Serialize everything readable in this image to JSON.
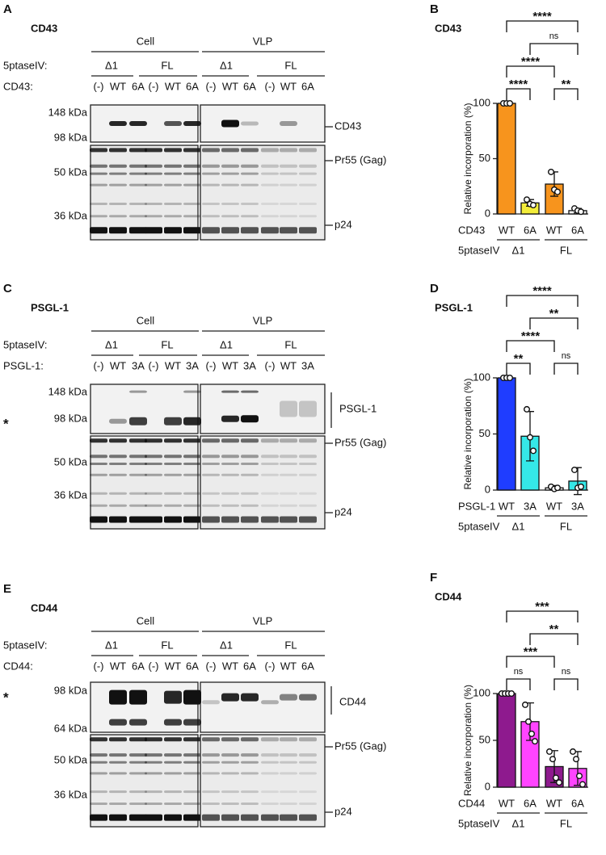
{
  "blots": [
    {
      "letter": "A",
      "title": "CD43",
      "fractions": [
        "Cell",
        "VLP"
      ],
      "group_label": "5ptaseIV:",
      "groups": [
        "Δ1",
        "FL",
        "Δ1",
        "FL"
      ],
      "lane_label": "CD43:",
      "lanes": [
        "(-)",
        "WT",
        "6A",
        "(-)",
        "WT",
        "6A",
        "(-)",
        "WT",
        "6A",
        "(-)",
        "WT",
        "6A"
      ],
      "markers": [
        "148 kDa",
        "98 kDa",
        "50 kDa",
        "36 kDa"
      ],
      "bands": [
        "CD43",
        "Pr55 (Gag)",
        "p24"
      ]
    },
    {
      "letter": "C",
      "title": "PSGL-1",
      "fractions": [
        "Cell",
        "VLP"
      ],
      "group_label": "5ptaseIV:",
      "groups": [
        "Δ1",
        "FL",
        "Δ1",
        "FL"
      ],
      "lane_label": "PSGL-1:",
      "lanes": [
        "(-)",
        "WT",
        "3A",
        "(-)",
        "WT",
        "3A",
        "(-)",
        "WT",
        "3A",
        "(-)",
        "WT",
        "3A"
      ],
      "markers": [
        "148 kDa",
        "98 kDa",
        "50 kDa",
        "36 kDa"
      ],
      "bands": [
        "PSGL-1",
        "Pr55 (Gag)",
        "p24"
      ],
      "asterisk": "*"
    },
    {
      "letter": "E",
      "title": "CD44",
      "fractions": [
        "Cell",
        "VLP"
      ],
      "group_label": "5ptaseIV:",
      "groups": [
        "Δ1",
        "FL",
        "Δ1",
        "FL"
      ],
      "lane_label": "CD44:",
      "lanes": [
        "(-)",
        "WT",
        "6A",
        "(-)",
        "WT",
        "6A",
        "(-)",
        "WT",
        "6A",
        "(-)",
        "WT",
        "6A"
      ],
      "markers": [
        "98 kDa",
        "64 kDa",
        "50 kDa",
        "36 kDa"
      ],
      "bands": [
        "CD44",
        "Pr55 (Gag)",
        "p24"
      ],
      "asterisk": "*"
    }
  ],
  "chart_data": [
    {
      "type": "bar",
      "panel": "B",
      "title": "CD43",
      "ylabel": "Relative incorporation (%)",
      "category_label": "CD43",
      "categories": [
        "WT",
        "6A",
        "WT",
        "6A"
      ],
      "group_label": "5ptaseIV",
      "groups": [
        "Δ1",
        "FL"
      ],
      "values": [
        100,
        10,
        27,
        3
      ],
      "errors": [
        0,
        3,
        11,
        2
      ],
      "colors": [
        "#f7941d",
        "#f2ec3a",
        "#f7941d",
        "#ffffff"
      ],
      "points": [
        [
          100,
          100,
          100
        ],
        [
          13,
          9,
          8
        ],
        [
          38,
          22,
          20
        ],
        [
          5,
          3,
          2
        ]
      ],
      "ylim": [
        0,
        100
      ],
      "yticks": [
        0,
        50,
        100
      ],
      "comparisons": [
        {
          "between": [
            0,
            1
          ],
          "label": "****"
        },
        {
          "between": [
            2,
            3
          ],
          "label": "**"
        },
        {
          "between": [
            0,
            2
          ],
          "label": "****"
        },
        {
          "between": [
            1,
            3
          ],
          "label": "ns"
        },
        {
          "between": [
            0,
            3
          ],
          "label": "****"
        }
      ]
    },
    {
      "type": "bar",
      "panel": "D",
      "title": "PSGL-1",
      "ylabel": "Relative incorporation (%)",
      "category_label": "PSGL-1",
      "categories": [
        "WT",
        "3A",
        "WT",
        "3A"
      ],
      "group_label": "5ptaseIV",
      "groups": [
        "Δ1",
        "FL"
      ],
      "values": [
        100,
        48,
        2,
        8
      ],
      "errors": [
        0,
        22,
        2,
        12
      ],
      "colors": [
        "#1f3dff",
        "#35e8e8",
        "#ffffff",
        "#35e8e8"
      ],
      "points": [
        [
          100,
          100,
          100
        ],
        [
          72,
          47,
          35
        ],
        [
          3,
          1,
          2
        ],
        [
          18,
          2,
          3
        ]
      ],
      "ylim": [
        0,
        100
      ],
      "yticks": [
        0,
        50,
        100
      ],
      "comparisons": [
        {
          "between": [
            0,
            1
          ],
          "label": "**"
        },
        {
          "between": [
            2,
            3
          ],
          "label": "ns"
        },
        {
          "between": [
            0,
            2
          ],
          "label": "****"
        },
        {
          "between": [
            1,
            3
          ],
          "label": "**"
        },
        {
          "between": [
            0,
            3
          ],
          "label": "****"
        }
      ]
    },
    {
      "type": "bar",
      "panel": "F",
      "title": "CD44",
      "ylabel": "Relative incorporation (%)",
      "category_label": "CD44",
      "categories": [
        "WT",
        "6A",
        "WT",
        "6A"
      ],
      "group_label": "5ptaseIV",
      "groups": [
        "Δ1",
        "FL"
      ],
      "values": [
        100,
        70,
        22,
        20
      ],
      "errors": [
        0,
        20,
        17,
        18
      ],
      "colors": [
        "#8e1a8e",
        "#ff44ff",
        "#8e1a8e",
        "#ff44ff"
      ],
      "points": [
        [
          100,
          100,
          100,
          100
        ],
        [
          88,
          70,
          57,
          49
        ],
        [
          38,
          30,
          10,
          5
        ],
        [
          38,
          30,
          12,
          3
        ]
      ],
      "ylim": [
        0,
        100
      ],
      "yticks": [
        0,
        50,
        100
      ],
      "comparisons": [
        {
          "between": [
            0,
            1
          ],
          "label": "ns"
        },
        {
          "between": [
            2,
            3
          ],
          "label": "ns"
        },
        {
          "between": [
            0,
            2
          ],
          "label": "***"
        },
        {
          "between": [
            1,
            3
          ],
          "label": "**"
        },
        {
          "between": [
            0,
            3
          ],
          "label": "***"
        }
      ]
    }
  ]
}
